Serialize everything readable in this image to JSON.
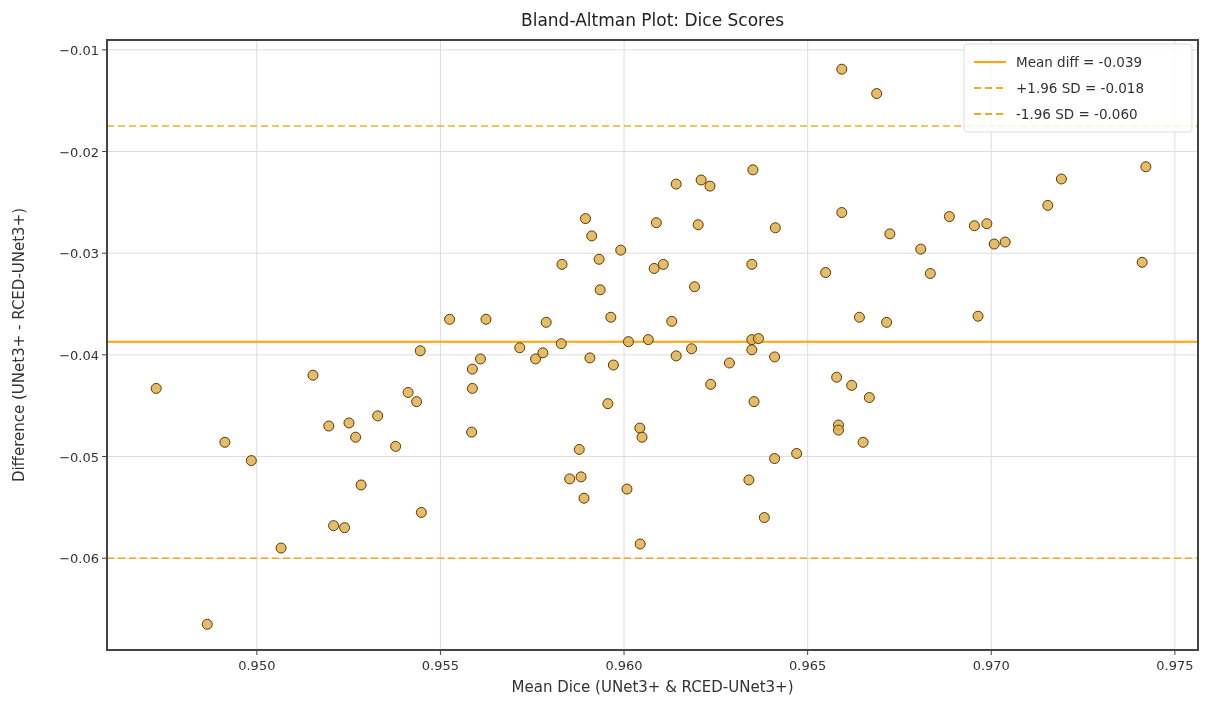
{
  "chart_data": {
    "type": "scatter",
    "title": "Bland-Altman Plot: Dice Scores",
    "xlabel": "Mean Dice (UNet3+ & RCED-UNet3+)",
    "ylabel": "Difference (UNet3+ - RCED-UNet3+)",
    "xlim": [
      0.94592,
      0.97563
    ],
    "ylim": [
      -0.06903,
      -0.00903
    ],
    "xticks": [
      {
        "value": 0.95,
        "label": "0.950"
      },
      {
        "value": 0.955,
        "label": "0.955"
      },
      {
        "value": 0.96,
        "label": "0.960"
      },
      {
        "value": 0.965,
        "label": "0.965"
      },
      {
        "value": 0.97,
        "label": "0.970"
      },
      {
        "value": 0.975,
        "label": "0.975"
      }
    ],
    "yticks": [
      {
        "value": -0.06,
        "label": "−0.06"
      },
      {
        "value": -0.05,
        "label": "−0.05"
      },
      {
        "value": -0.04,
        "label": "−0.04"
      },
      {
        "value": -0.03,
        "label": "−0.03"
      },
      {
        "value": -0.02,
        "label": "−0.02"
      },
      {
        "value": -0.01,
        "label": "−0.01"
      }
    ],
    "grid": true,
    "legend": "top right",
    "marker": "circle",
    "ref_lines": [
      {
        "axis": "y",
        "value": -0.0387,
        "label": "Mean diff = -0.039",
        "color": "#ffa500",
        "line_style": "solid"
      },
      {
        "axis": "y",
        "value": -0.0175,
        "label": "+1.96 SD = -0.018",
        "color": "#e6b422",
        "line_style": "dashed"
      },
      {
        "axis": "y",
        "value": -0.06,
        "label": "-1.96 SD = -0.060",
        "color": "#f5a623",
        "line_style": "dashed"
      }
    ],
    "series": [
      {
        "color": "#e0b050",
        "x": [
          0.94726,
          0.94913,
          0.94985,
          0.95066,
          0.94865,
          0.95153,
          0.95196,
          0.95251,
          0.95269,
          0.95329,
          0.95284,
          0.95209,
          0.95239,
          0.95378,
          0.95412,
          0.95435,
          0.95445,
          0.95448,
          0.95525,
          0.95624,
          0.95587,
          0.95609,
          0.95587,
          0.95585,
          0.95716,
          0.95759,
          0.95779,
          0.95788,
          0.95829,
          0.95831,
          0.95895,
          0.95912,
          0.95932,
          0.95935,
          0.95964,
          0.95991,
          0.95907,
          0.95971,
          0.95956,
          0.95878,
          0.95852,
          0.95883,
          0.95891,
          0.96012,
          0.96008,
          0.96044,
          0.96043,
          0.96049,
          0.96593,
          0.96688,
          0.96351,
          0.96142,
          0.9621,
          0.96234,
          0.96088,
          0.96202,
          0.96412,
          0.96593,
          0.96724,
          0.96808,
          0.96886,
          0.96954,
          0.96988,
          0.97008,
          0.97038,
          0.97154,
          0.97191,
          0.97421,
          0.97411,
          0.96082,
          0.96107,
          0.96192,
          0.96348,
          0.96549,
          0.96834,
          0.9613,
          0.96641,
          0.96715,
          0.96964,
          0.96066,
          0.96142,
          0.96184,
          0.96287,
          0.96236,
          0.96348,
          0.96366,
          0.96348,
          0.9641,
          0.96354,
          0.96579,
          0.9662,
          0.96668,
          0.96584,
          0.96584,
          0.96651,
          0.9641,
          0.9647,
          0.9634,
          0.96382
        ],
        "values": [
          -0.0433,
          -0.0486,
          -0.0504,
          -0.059,
          -0.0665,
          -0.042,
          -0.047,
          -0.0467,
          -0.0481,
          -0.046,
          -0.0528,
          -0.0568,
          -0.057,
          -0.049,
          -0.0437,
          -0.0446,
          -0.0396,
          -0.0555,
          -0.0365,
          -0.0365,
          -0.0414,
          -0.0404,
          -0.0433,
          -0.0476,
          -0.0393,
          -0.0404,
          -0.0398,
          -0.0368,
          -0.0389,
          -0.0311,
          -0.0266,
          -0.0283,
          -0.0306,
          -0.0336,
          -0.0363,
          -0.0297,
          -0.0403,
          -0.041,
          -0.0448,
          -0.0493,
          -0.0522,
          -0.052,
          -0.0541,
          -0.0387,
          -0.0532,
          -0.0586,
          -0.0472,
          -0.0481,
          -0.0119,
          -0.0143,
          -0.0218,
          -0.0232,
          -0.0228,
          -0.0234,
          -0.027,
          -0.0272,
          -0.0275,
          -0.026,
          -0.0281,
          -0.0296,
          -0.0264,
          -0.0273,
          -0.0271,
          -0.0291,
          -0.0289,
          -0.0253,
          -0.0227,
          -0.0215,
          -0.0309,
          -0.0315,
          -0.0311,
          -0.0333,
          -0.0311,
          -0.0319,
          -0.032,
          -0.0367,
          -0.0363,
          -0.0368,
          -0.0362,
          -0.0385,
          -0.0401,
          -0.0394,
          -0.0408,
          -0.0429,
          -0.0385,
          -0.0384,
          -0.0395,
          -0.0402,
          -0.0446,
          -0.0422,
          -0.043,
          -0.0442,
          -0.0469,
          -0.0474,
          -0.0486,
          -0.0502,
          -0.0497,
          -0.0523,
          -0.056
        ]
      }
    ]
  }
}
